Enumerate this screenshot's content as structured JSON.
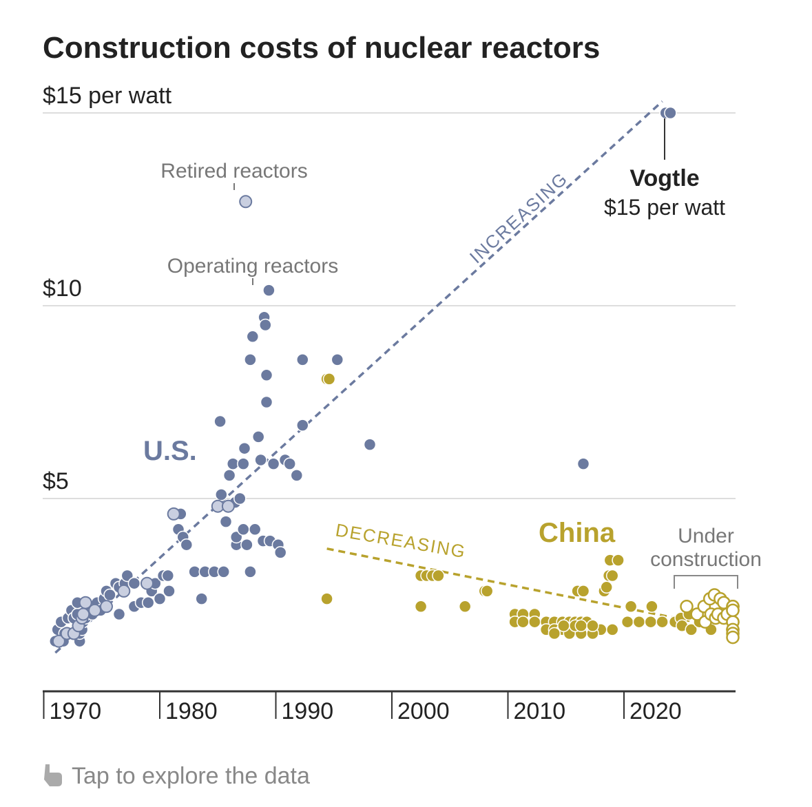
{
  "colors": {
    "us": "#6b7a9f",
    "us_retired_fill": "#c9cfe0",
    "china": "#b8a22d",
    "grid": "#dddddd",
    "axis": "#333333",
    "text": "#222222",
    "annotation": "#777777"
  },
  "chart_data": {
    "type": "scatter",
    "title": "Construction costs of nuclear reactors",
    "xlim": [
      1969.5,
      2028.5
    ],
    "ylim": [
      0,
      15.5
    ],
    "grid": true,
    "x_ticks": [
      {
        "value": 1970,
        "label": "1970"
      },
      {
        "value": 1980,
        "label": "1980"
      },
      {
        "value": 1990,
        "label": "1990"
      },
      {
        "value": 2000,
        "label": "2000"
      },
      {
        "value": 2010,
        "label": "2010"
      },
      {
        "value": 2020,
        "label": "2020"
      }
    ],
    "y_ticks": [
      {
        "value": 15,
        "label": "$15 per watt"
      },
      {
        "value": 10,
        "label": "$10"
      },
      {
        "value": 5,
        "label": "$5"
      }
    ],
    "series": [
      {
        "name": "U.S.",
        "points": [
          [
            1971.0,
            1.3
          ],
          [
            1971.7,
            1.3
          ],
          [
            1971.2,
            1.6
          ],
          [
            1971.5,
            1.8
          ],
          [
            1971.8,
            1.5
          ],
          [
            1972.1,
            1.9
          ],
          [
            1972.4,
            2.1
          ],
          [
            1972.6,
            1.9
          ],
          [
            1972.9,
            2.0
          ],
          [
            1972.9,
            2.3
          ],
          [
            1973.1,
            1.3
          ],
          [
            1973.1,
            1.5
          ],
          [
            1973.3,
            1.6
          ],
          [
            1973.4,
            1.8
          ],
          [
            1973.6,
            1.9
          ],
          [
            1973.7,
            2.0
          ],
          [
            1973.8,
            2.1
          ],
          [
            1974.0,
            2.2
          ],
          [
            1974.2,
            2.0
          ],
          [
            1974.5,
            2.1
          ],
          [
            1974.6,
            2.3
          ],
          [
            1974.9,
            2.1
          ],
          [
            1975.2,
            2.4
          ],
          [
            1975.4,
            2.6
          ],
          [
            1975.7,
            2.5
          ],
          [
            1976.2,
            2.8
          ],
          [
            1976.5,
            2.0
          ],
          [
            1976.5,
            2.7
          ],
          [
            1977.0,
            2.8
          ],
          [
            1977.2,
            3.0
          ],
          [
            1977.8,
            2.8
          ],
          [
            1977.8,
            2.2
          ],
          [
            1978.4,
            2.3
          ],
          [
            1979.0,
            2.3
          ],
          [
            1979.3,
            2.6
          ],
          [
            1979.6,
            2.8
          ],
          [
            1980.0,
            2.4
          ],
          [
            1980.3,
            3.0
          ],
          [
            1980.7,
            3.0
          ],
          [
            1980.8,
            2.6
          ],
          [
            1981.6,
            4.2
          ],
          [
            1981.8,
            4.6
          ],
          [
            1982.0,
            4.0
          ],
          [
            1982.3,
            3.8
          ],
          [
            1983.0,
            3.1
          ],
          [
            1983.6,
            2.4
          ],
          [
            1983.9,
            3.1
          ],
          [
            1984.7,
            3.1
          ],
          [
            1985.2,
            7.0
          ],
          [
            1985.3,
            5.1
          ],
          [
            1985.5,
            3.1
          ],
          [
            1985.7,
            4.4
          ],
          [
            1986.0,
            5.6
          ],
          [
            1986.3,
            5.9
          ],
          [
            1986.5,
            4.9
          ],
          [
            1986.6,
            3.8
          ],
          [
            1986.6,
            4.0
          ],
          [
            1986.9,
            5.0
          ],
          [
            1987.2,
            5.9
          ],
          [
            1987.2,
            4.2
          ],
          [
            1987.3,
            6.3
          ],
          [
            1987.5,
            3.8
          ],
          [
            1987.8,
            3.1
          ],
          [
            1987.8,
            8.6
          ],
          [
            1988.0,
            9.2
          ],
          [
            1988.2,
            4.2
          ],
          [
            1988.5,
            6.6
          ],
          [
            1988.7,
            6.0
          ],
          [
            1988.9,
            3.9
          ],
          [
            1989.0,
            9.7
          ],
          [
            1989.1,
            9.5
          ],
          [
            1989.2,
            7.5
          ],
          [
            1989.2,
            8.2
          ],
          [
            1989.4,
            10.4
          ],
          [
            1989.5,
            3.9
          ],
          [
            1989.8,
            5.9
          ],
          [
            1990.2,
            3.8
          ],
          [
            1990.4,
            3.6
          ],
          [
            1990.8,
            6.0
          ],
          [
            1991.2,
            5.9
          ],
          [
            1991.8,
            5.6
          ],
          [
            1992.3,
            6.9
          ],
          [
            1992.3,
            8.6
          ],
          [
            1995.3,
            8.6
          ],
          [
            1998.1,
            6.4
          ],
          [
            2016.5,
            5.9
          ],
          [
            2023.6,
            15.0
          ],
          [
            2024.0,
            15.0
          ]
        ]
      },
      {
        "name": "Retired reactors",
        "points": [
          [
            1971.3,
            1.3
          ],
          [
            1972.0,
            1.5
          ],
          [
            1972.6,
            1.5
          ],
          [
            1973.0,
            1.7
          ],
          [
            1973.3,
            1.9
          ],
          [
            1973.4,
            2.0
          ],
          [
            1973.6,
            2.3
          ],
          [
            1974.4,
            2.1
          ],
          [
            1975.4,
            2.2
          ],
          [
            1976.9,
            2.6
          ],
          [
            1978.9,
            2.8
          ],
          [
            1981.2,
            4.6
          ],
          [
            1985.0,
            4.8
          ],
          [
            1985.9,
            4.8
          ],
          [
            1987.4,
            12.7
          ]
        ]
      },
      {
        "name": "China",
        "points": [
          [
            1994.4,
            8.1
          ],
          [
            1994.6,
            8.1
          ],
          [
            1994.4,
            2.4
          ],
          [
            2002.5,
            3.0
          ],
          [
            2003.0,
            3.0
          ],
          [
            2003.5,
            3.0
          ],
          [
            2004.0,
            3.0
          ],
          [
            2002.5,
            2.2
          ],
          [
            2006.3,
            2.2
          ],
          [
            2008.0,
            2.6
          ],
          [
            2008.2,
            2.6
          ],
          [
            2010.6,
            2.0
          ],
          [
            2011.3,
            2.0
          ],
          [
            2012.3,
            2.0
          ],
          [
            2010.6,
            1.8
          ],
          [
            2011.3,
            1.8
          ],
          [
            2012.3,
            1.8
          ],
          [
            2013.3,
            1.8
          ],
          [
            2014.0,
            1.8
          ],
          [
            2014.7,
            1.8
          ],
          [
            2015.3,
            1.8
          ],
          [
            2015.8,
            1.8
          ],
          [
            2016.3,
            1.8
          ],
          [
            2016.8,
            1.8
          ],
          [
            2013.3,
            1.6
          ],
          [
            2014.0,
            1.6
          ],
          [
            2014.7,
            1.6
          ],
          [
            2015.3,
            1.6
          ],
          [
            2015.8,
            1.6
          ],
          [
            2016.3,
            1.6
          ],
          [
            2016.8,
            1.6
          ],
          [
            2017.3,
            1.6
          ],
          [
            2018.0,
            1.6
          ],
          [
            2019.0,
            1.6
          ],
          [
            2014.0,
            1.5
          ],
          [
            2015.3,
            1.5
          ],
          [
            2016.3,
            1.5
          ],
          [
            2017.3,
            1.5
          ],
          [
            2014.8,
            1.7
          ],
          [
            2015.8,
            1.7
          ],
          [
            2016.3,
            1.7
          ],
          [
            2017.3,
            1.7
          ],
          [
            2016.0,
            2.6
          ],
          [
            2016.5,
            2.6
          ],
          [
            2018.3,
            2.6
          ],
          [
            2018.7,
            3.0
          ],
          [
            2019.0,
            3.0
          ],
          [
            2018.5,
            2.7
          ],
          [
            2018.8,
            3.4
          ],
          [
            2019.5,
            3.4
          ],
          [
            2020.3,
            1.8
          ],
          [
            2020.6,
            2.2
          ],
          [
            2021.3,
            1.8
          ],
          [
            2022.3,
            1.8
          ],
          [
            2022.4,
            2.2
          ],
          [
            2023.3,
            1.8
          ],
          [
            2024.4,
            1.8
          ],
          [
            2024.9,
            1.9
          ],
          [
            2025.0,
            1.7
          ],
          [
            2025.6,
            2.0
          ],
          [
            2025.8,
            1.6
          ],
          [
            2026.5,
            1.8
          ],
          [
            2027.0,
            1.8
          ],
          [
            2027.5,
            1.6
          ]
        ]
      },
      {
        "name": "Under construction",
        "points": [
          [
            2025.4,
            2.2
          ],
          [
            2026.3,
            2.0
          ],
          [
            2026.9,
            2.2
          ],
          [
            2027.0,
            1.8
          ],
          [
            2027.4,
            2.4
          ],
          [
            2027.5,
            2.0
          ],
          [
            2027.8,
            2.5
          ],
          [
            2027.9,
            1.9
          ],
          [
            2028.3,
            2.4
          ],
          [
            2028.1,
            2.0
          ],
          [
            2028.6,
            2.3
          ],
          [
            2028.6,
            1.9
          ],
          [
            2028.9,
            2.0
          ],
          [
            2029.4,
            1.8
          ],
          [
            2029.6,
            2.1
          ],
          [
            2029.4,
            2.2
          ],
          [
            2029.9,
            1.6
          ],
          [
            2030.3,
            2.2
          ],
          [
            2030.3,
            1.8
          ],
          [
            2030.6,
            2.1
          ],
          [
            2030.4,
            1.6
          ],
          [
            2030.9,
            1.5
          ],
          [
            2031.7,
            1.4
          ]
        ]
      }
    ],
    "trendlines": [
      {
        "name": "INCREASING",
        "from": [
          1971.0,
          1.0
        ],
        "to": [
          2023.3,
          15.3
        ]
      },
      {
        "name": "DECREASING",
        "from": [
          1994.4,
          3.7
        ],
        "to": [
          2027.8,
          1.7
        ]
      }
    ],
    "annotations": {
      "retired": "Retired reactors",
      "operating": "Operating reactors",
      "vogtle_name": "Vogtle",
      "vogtle_value": "$15 per watt",
      "under_construction_line1": "Under",
      "under_construction_line2": "construction",
      "us_label": "U.S.",
      "china_label": "China",
      "increasing": "INCREASING",
      "decreasing": "DECREASING"
    }
  },
  "footer": {
    "icon": "pointing-hand-icon",
    "text": "Tap to explore the data"
  }
}
